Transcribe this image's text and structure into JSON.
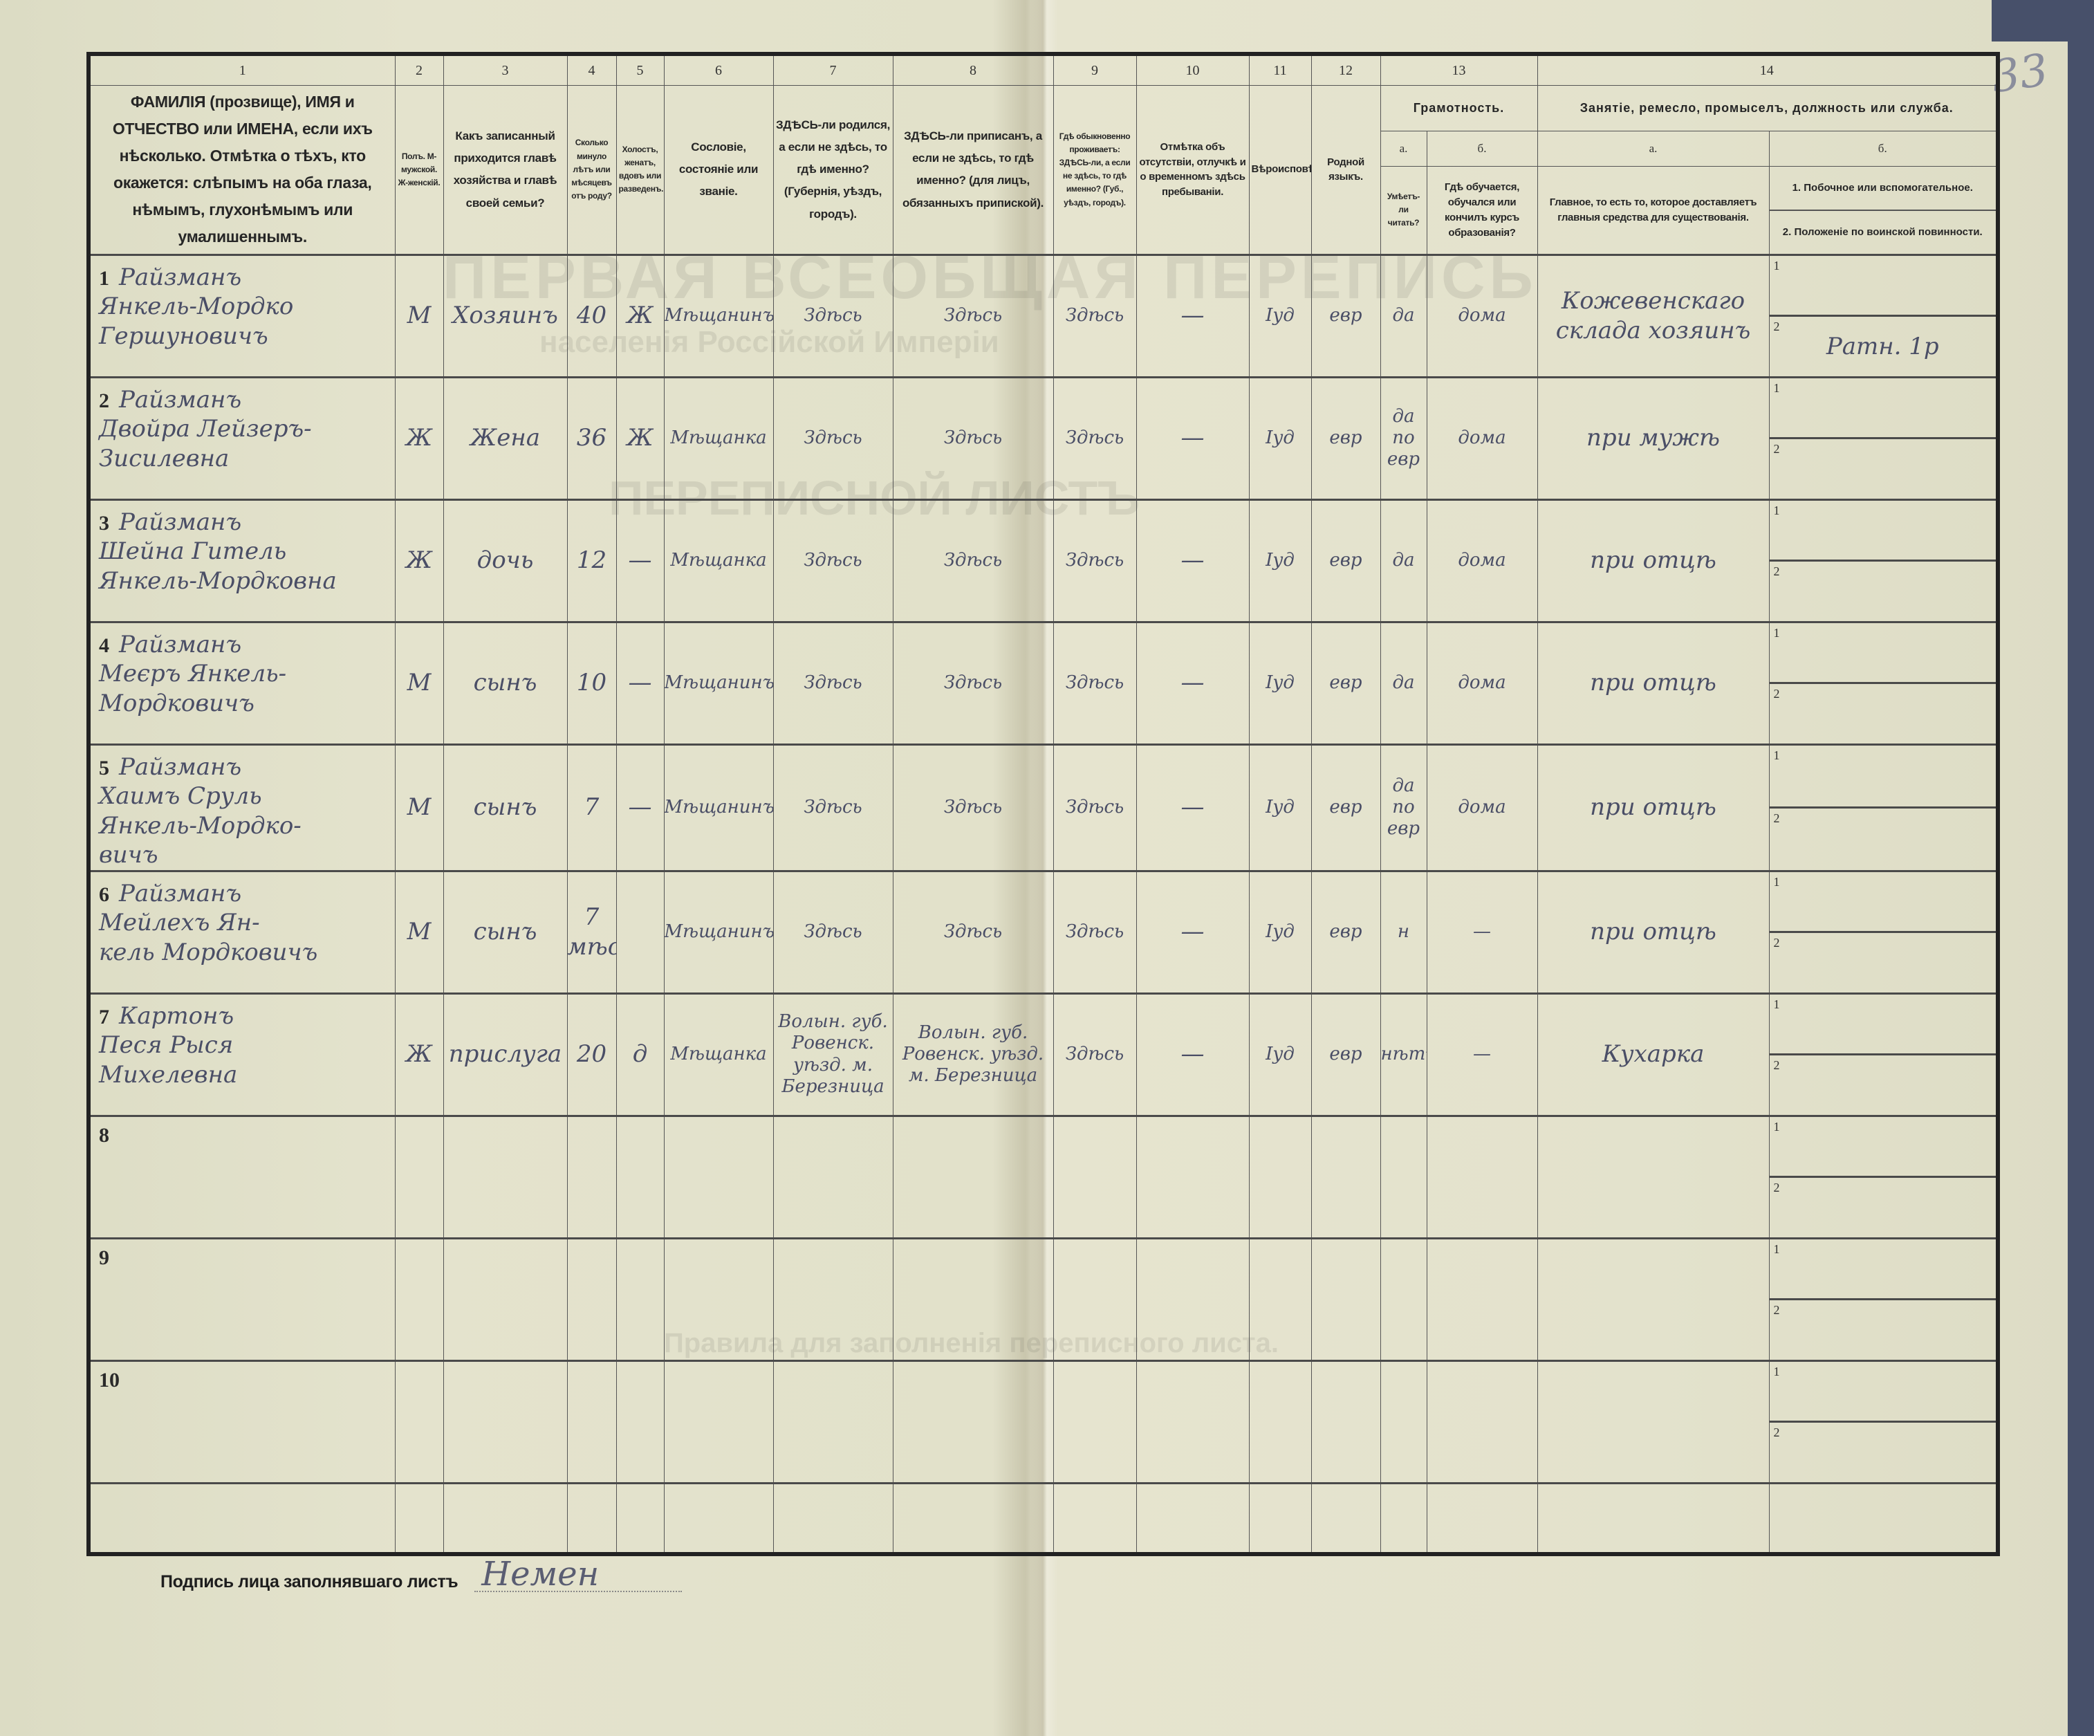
{
  "page_number": "33",
  "bleed_through": [
    "ПЕРВАЯ ВСЕОБЩАЯ ПЕРЕПИСЬ",
    "населенія Россійской Имперіи",
    "ПЕРЕПИСНОЙ ЛИСТЪ",
    "Правила для заполненія переписного листа."
  ],
  "header": {
    "numbers": [
      "1",
      "2",
      "3",
      "4",
      "5",
      "6",
      "7",
      "8",
      "9",
      "10",
      "11",
      "12",
      "13",
      "14"
    ],
    "col1": "ФАМИЛІЯ (прозвище), ИМЯ и ОТЧЕСТВО или ИМЕНА, если ихъ нѣсколько. Отмѣтка о тѣхъ, кто окажется: слѣпымъ на оба глаза, нѣмымъ, глухонѣмымъ или умалишеннымъ.",
    "col2": "Полъ. М-мужской. Ж-женскій.",
    "col3": "Какъ записанный приходится главѣ хозяйства и главѣ своей семьи?",
    "col4": "Сколько минуло лѣтъ или мѣсяцевъ отъ роду?",
    "col5": "Холостъ, женатъ, вдовъ или разведенъ.",
    "col6": "Сословіе, состояніе или званіе.",
    "col7": "ЗДѢСЬ-ли родился, а если не здѣсь, то гдѣ именно? (Губернія, уѣздъ, городъ).",
    "col8": "ЗДѢСЬ-ли приписанъ, а если не здѣсь, то гдѣ именно? (для лицъ, обязанныхъ припиской).",
    "col9": "Гдѣ обыкновенно проживаетъ: ЗДѢСЬ-ли, а если не здѣсь, то гдѣ именно? (Губ., уѣздъ, городъ).",
    "col10": "Отмѣтка объ отсутствіи, отлучкѣ и о временномъ здѣсь пребываніи.",
    "col11": "Вѣроисповѣданіе.",
    "col12": "Родной языкъ.",
    "col13": {
      "title": "Грамотность.",
      "a": "а.",
      "b": "б.",
      "a_text": "Умѣетъ-ли читать?",
      "b_text": "Гдѣ обучается, обучался или кончилъ курсъ образованія?"
    },
    "col14": {
      "title": "Занятіе, ремесло, промыселъ, должность или служба.",
      "a": "а.",
      "b": "б.",
      "a_text": "Главное, то есть то, которое доставляетъ главныя средства для существованія.",
      "b1_text": "1. Побочное или вспомогательное.",
      "b2_text": "2. Положеніе по воинской повинности."
    }
  },
  "rows": [
    {
      "num": "1",
      "name": [
        "Райзманъ",
        "Янкель-Мордко",
        "Гершуновичъ"
      ],
      "sex": "М",
      "relation": "Хозяинъ",
      "age": "40",
      "marital": "Ж",
      "estate": "Мѣщанинъ",
      "born": "Здѣсь",
      "registered": "Здѣсь",
      "resides": "Здѣсь",
      "absence": "—",
      "religion": "Іуд",
      "language": "евр",
      "literate": "да",
      "education": "дома",
      "occupation": "Кожевенскаго склада хозяинъ",
      "side": "",
      "military": "Ратн. 1р"
    },
    {
      "num": "2",
      "name": [
        "Райзманъ",
        "Двойра Лейзеръ-",
        "Зисилевна"
      ],
      "sex": "Ж",
      "relation": "Жена",
      "age": "36",
      "marital": "Ж",
      "estate": "Мѣщанка",
      "born": "Здѣсь",
      "registered": "Здѣсь",
      "resides": "Здѣсь",
      "absence": "—",
      "religion": "Іуд",
      "language": "евр",
      "literate": "да по евр",
      "education": "дома",
      "occupation": "при мужѣ",
      "side": "",
      "military": ""
    },
    {
      "num": "3",
      "name": [
        "Райзманъ",
        "Шейна Гитель",
        "Янкель-Мордковна"
      ],
      "sex": "Ж",
      "relation": "дочь",
      "age": "12",
      "marital": "—",
      "estate": "Мѣщанка",
      "born": "Здѣсь",
      "registered": "Здѣсь",
      "resides": "Здѣсь",
      "absence": "—",
      "religion": "Іуд",
      "language": "евр",
      "literate": "да",
      "education": "дома",
      "occupation": "при отцѣ",
      "side": "",
      "military": ""
    },
    {
      "num": "4",
      "name": [
        "Райзманъ",
        "Меєръ Янкель-",
        "Мордковичъ"
      ],
      "sex": "М",
      "relation": "сынъ",
      "age": "10",
      "marital": "—",
      "estate": "Мѣщанинъ",
      "born": "Здѣсь",
      "registered": "Здѣсь",
      "resides": "Здѣсь",
      "absence": "—",
      "religion": "Іуд",
      "language": "евр",
      "literate": "да",
      "education": "дома",
      "occupation": "при отцѣ",
      "side": "",
      "military": ""
    },
    {
      "num": "5",
      "name": [
        "Райзманъ",
        "Хаимъ Сруль",
        "Янкель-Мордко-",
        "вичъ"
      ],
      "sex": "М",
      "relation": "сынъ",
      "age": "7",
      "marital": "—",
      "estate": "Мѣщанинъ",
      "born": "Здѣсь",
      "registered": "Здѣсь",
      "resides": "Здѣсь",
      "absence": "—",
      "religion": "Іуд",
      "language": "евр",
      "literate": "да по евр",
      "education": "дома",
      "occupation": "при отцѣ",
      "side": "",
      "military": ""
    },
    {
      "num": "6",
      "name": [
        "Райзманъ",
        "Мейлехъ Ян-",
        "кель Мордковичъ"
      ],
      "sex": "М",
      "relation": "сынъ",
      "age": "7 мѣс",
      "marital": "",
      "estate": "Мѣщанинъ",
      "born": "Здѣсь",
      "registered": "Здѣсь",
      "resides": "Здѣсь",
      "absence": "—",
      "religion": "Іуд",
      "language": "евр",
      "literate": "н",
      "education": "—",
      "occupation": "при отцѣ",
      "side": "",
      "military": ""
    },
    {
      "num": "7",
      "name": [
        "Картонъ",
        "Песя Рыся",
        "Михелевна"
      ],
      "sex": "Ж",
      "relation": "прислуга",
      "age": "20",
      "marital": "д",
      "estate": "Мѣщанка",
      "born": "Волын. губ. Ровенск. уѣзд. м. Березница",
      "registered": "Волын. губ. Ровенск. уѣзд. м. Березница",
      "resides": "Здѣсь",
      "absence": "—",
      "religion": "Іуд",
      "language": "евр",
      "literate": "нѣтъ",
      "education": "—",
      "occupation": "Кухарка",
      "side": "",
      "military": ""
    },
    {
      "num": "8",
      "name": [],
      "sex": "",
      "relation": "",
      "age": "",
      "marital": "",
      "estate": "",
      "born": "",
      "registered": "",
      "resides": "",
      "absence": "",
      "religion": "",
      "language": "",
      "literate": "",
      "education": "",
      "occupation": "",
      "side": "",
      "military": ""
    },
    {
      "num": "9",
      "name": [],
      "sex": "",
      "relation": "",
      "age": "",
      "marital": "",
      "estate": "",
      "born": "",
      "registered": "",
      "resides": "",
      "absence": "",
      "religion": "",
      "language": "",
      "literate": "",
      "education": "",
      "occupation": "",
      "side": "",
      "military": ""
    },
    {
      "num": "10",
      "name": [],
      "sex": "",
      "relation": "",
      "age": "",
      "marital": "",
      "estate": "",
      "born": "",
      "registered": "",
      "resides": "",
      "absence": "",
      "religion": "",
      "language": "",
      "literate": "",
      "education": "",
      "occupation": "",
      "side": "",
      "military": ""
    }
  ],
  "sub_labels": {
    "one": "1",
    "two": "2"
  },
  "signature": {
    "label": "Подпись лица заполнявшаго листъ",
    "handwritten": "Немен"
  }
}
